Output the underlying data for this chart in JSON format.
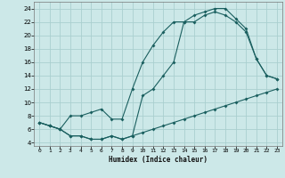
{
  "xlabel": "Humidex (Indice chaleur)",
  "bg_color": "#cce8e8",
  "grid_color": "#aacfcf",
  "line_color": "#1a5f5f",
  "xlim": [
    -0.5,
    23.5
  ],
  "ylim": [
    3.5,
    25
  ],
  "xticks": [
    0,
    1,
    2,
    3,
    4,
    5,
    6,
    7,
    8,
    9,
    10,
    11,
    12,
    13,
    14,
    15,
    16,
    17,
    18,
    19,
    20,
    21,
    22,
    23
  ],
  "yticks": [
    4,
    6,
    8,
    10,
    12,
    14,
    16,
    18,
    20,
    22,
    24
  ],
  "curve1_x": [
    0,
    1,
    2,
    3,
    4,
    5,
    6,
    7,
    8,
    9,
    10,
    11,
    12,
    13,
    14,
    15,
    16,
    17,
    18,
    19,
    20,
    21,
    22,
    23
  ],
  "curve1_y": [
    7,
    6.5,
    6,
    8,
    8,
    8.5,
    9,
    7.5,
    7.5,
    12,
    16,
    18.5,
    20.5,
    22,
    22,
    23,
    23.5,
    24,
    24,
    22.5,
    21,
    16.5,
    14,
    13.5
  ],
  "curve2_x": [
    0,
    1,
    2,
    3,
    4,
    5,
    6,
    7,
    8,
    9,
    10,
    11,
    12,
    13,
    14,
    15,
    16,
    17,
    18,
    19,
    20,
    21,
    22,
    23
  ],
  "curve2_y": [
    7,
    6.5,
    6,
    5,
    5,
    4.5,
    4.5,
    5,
    4.5,
    5,
    11,
    12,
    14,
    16,
    22,
    22,
    23,
    23.5,
    23,
    22,
    20.5,
    16.5,
    14,
    13.5
  ],
  "curve3_x": [
    0,
    1,
    2,
    3,
    4,
    5,
    6,
    7,
    8,
    9,
    10,
    11,
    12,
    13,
    14,
    15,
    16,
    17,
    18,
    19,
    20,
    21,
    22,
    23
  ],
  "curve3_y": [
    7,
    6.5,
    6,
    5,
    5,
    4.5,
    4.5,
    5,
    4.5,
    5,
    5.5,
    6,
    6.5,
    7,
    7.5,
    8,
    8.5,
    9,
    9.5,
    10,
    10.5,
    11,
    11.5,
    12
  ]
}
